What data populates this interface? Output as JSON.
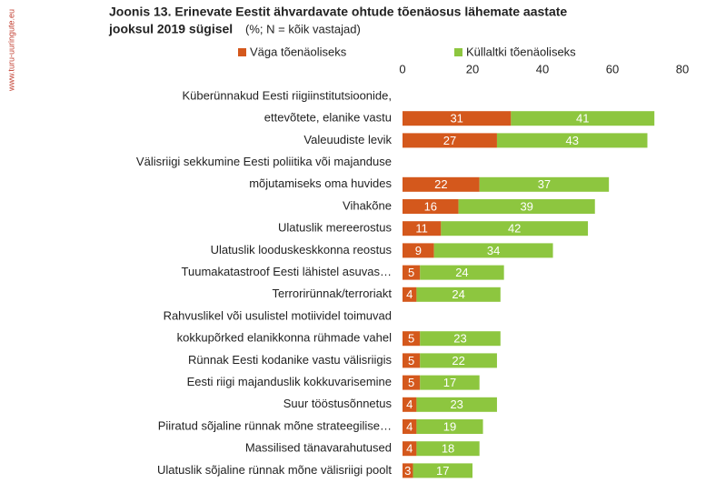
{
  "chart_data": {
    "type": "stacked-bar-horizontal",
    "title": "Joonis 13. Erinevate Eestit ähvardavate ohtude tõenäosus lähemate aastate",
    "title_line2": "jooksul 2019 sügisel",
    "subtitle": "(%; N = kõik vastajad)",
    "watermark": "www.turu-uuringute.eu",
    "categories": [
      [
        "Küberünnakud Eesti riigiinstitutsioonide,",
        "ettevõtete, elanike vastu"
      ],
      "Valeuudiste levik",
      [
        "Välisriigi sekkumine Eesti poliitika või majanduse",
        "mõjutamiseks oma huvides"
      ],
      "Vihakõne",
      "Ulatuslik mereerostus",
      "Ulatuslik looduskeskkonna reostus",
      "Tuumakatastroof Eesti lähistel asuvas…",
      "Terrorirünnak/terroriakt",
      [
        "Rahvuslikel või usulistel motiividel toimuvad",
        "kokkupõrked elanikkonna rühmade vahel"
      ],
      "Rünnak Eesti kodanike vastu välisriigis",
      "Eesti riigi majanduslik kokkuvarisemine",
      "Suur tööstusõnnetus",
      "Piiratud sõjaline rünnak mõne strateegilise…",
      "Massilised tänavarahutused",
      "Ulatuslik sõjaline rünnak mõne välisriigi poolt"
    ],
    "series": [
      {
        "name": "Väga tõenäoliseks",
        "color": "#d4581c",
        "values": [
          31,
          27,
          22,
          16,
          11,
          9,
          5,
          4,
          5,
          5,
          5,
          4,
          4,
          4,
          3
        ]
      },
      {
        "name": "Küllaltki tõenäoliseks",
        "color": "#8dc63f",
        "values": [
          41,
          43,
          37,
          39,
          42,
          34,
          24,
          24,
          23,
          22,
          17,
          23,
          19,
          18,
          17
        ]
      }
    ],
    "xlim": [
      0,
      80
    ],
    "xticks": [
      0,
      20,
      40,
      60,
      80
    ]
  }
}
